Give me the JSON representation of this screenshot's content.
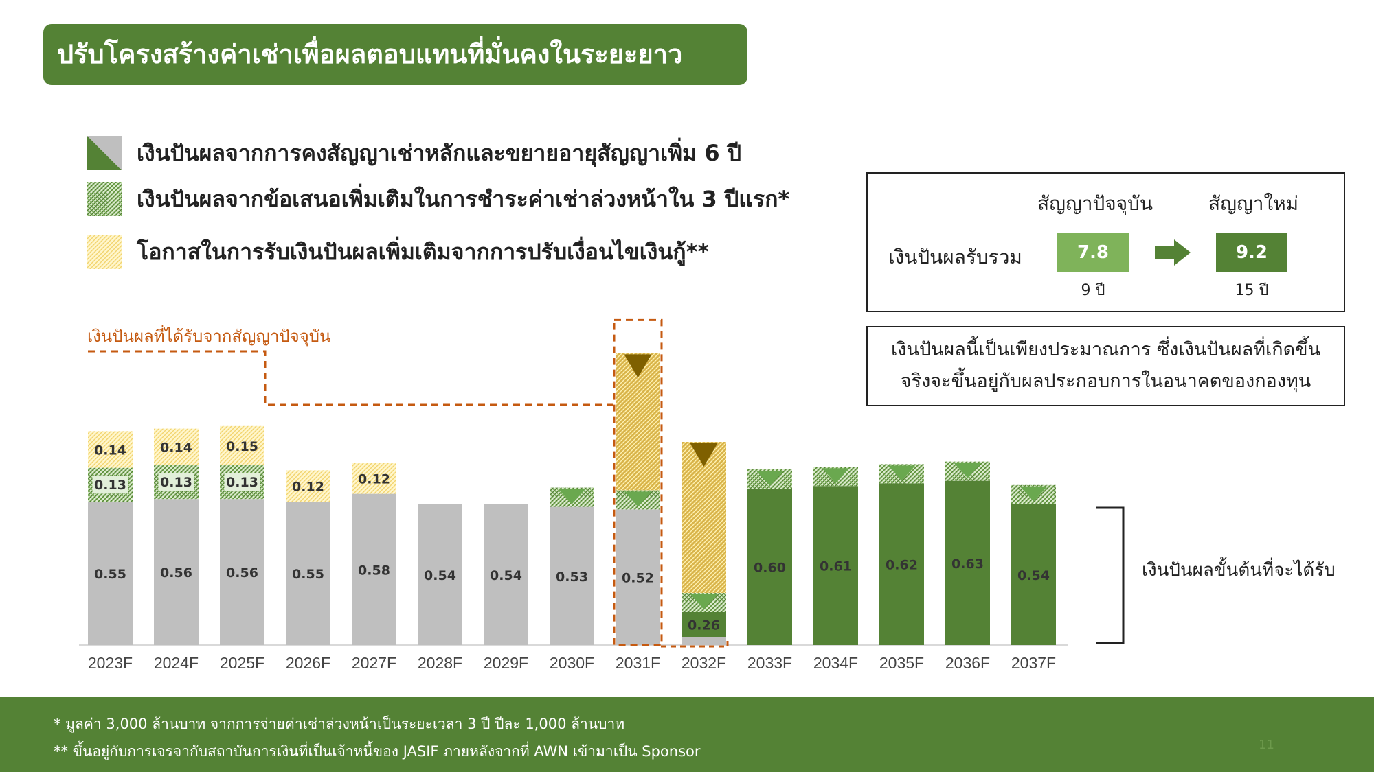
{
  "title": "ปรับโครงสร้างค่าเช่าเพื่อผลตอบแทนที่มั่นคงในระยะยาว",
  "legend": [
    {
      "label": "เงินปันผลจากการคงสัญญาเช่าหลักและขยายอายุสัญญาเพิ่ม 6 ปี",
      "icon": "diagonal-split-swatch-icon"
    },
    {
      "label": "เงินปันผลจากข้อเสนอเพิ่มเติมในการชำระค่าเช่าล่วงหน้าใน 3 ปีแรก*",
      "icon": "green-hatched-swatch-icon"
    },
    {
      "label": "โอกาสในการรับเงินปันผลเพิ่มเติมจากการปรับเงื่อนไขเงินกู้**",
      "icon": "yellow-hatched-swatch-icon"
    }
  ],
  "summary": {
    "col_current": "สัญญาปัจจุบัน",
    "col_new": "สัญญาใหม่",
    "row_label": "เงินปันผลรับรวม",
    "current_value": "7.8",
    "current_years": "9 ปี",
    "new_value": "9.2",
    "new_years": "15 ปี"
  },
  "note": {
    "line1": "เงินปันผลนี้เป็นเพียงประมาณการ ซึ่งเงินปันผลที่เกิดขึ้น",
    "line2": "จริงจะขึ้นอยู่กับผลประกอบการในอนาคตของกองทุน"
  },
  "current_contract_label": "เงินปันผลที่ได้รับจากสัญญาปัจจุบัน",
  "base_bracket_label": "เงินปันผลขั้นต้นที่จะได้รับ",
  "colors": {
    "green_dark": "#548235",
    "green_light": "#7FB35A",
    "grey": "#BFBFBF",
    "yellow_hatch": "#FFF2B3",
    "gold": "#B8860B",
    "orange_dash": "#C55A11"
  },
  "chart_data": {
    "type": "bar",
    "stacked": true,
    "categories": [
      "2023F",
      "2024F",
      "2025F",
      "2026F",
      "2027F",
      "2028F",
      "2029F",
      "2030F",
      "2031F",
      "2032F",
      "2033F",
      "2034F",
      "2035F",
      "2036F",
      "2037F"
    ],
    "series": [
      {
        "name": "",
        "values": [
          0.55,
          0.56,
          0.56,
          0.55,
          0.58,
          0.54,
          0.54,
          0.53,
          0.52,
          0.26,
          0.6,
          0.61,
          0.62,
          0.63,
          0.54
        ],
        "labels": [
          "0.55",
          "0.56",
          "0.56",
          "0.55",
          "0.58",
          "0.54",
          "0.54",
          "0.53",
          "0.52",
          "0.26",
          "0.60",
          "0.61",
          "0.62",
          "0.63",
          "0.54"
        ]
      },
      {
        "name": "",
        "values": [
          0.13,
          0.13,
          0.13,
          0,
          0,
          0,
          0,
          0,
          0,
          0,
          0,
          0,
          0,
          0,
          0
        ],
        "labels": [
          "0.13",
          "0.13",
          "0.13",
          "",
          "",
          "",
          "",
          "",
          "",
          "",
          "",
          "",
          "",
          "",
          ""
        ]
      },
      {
        "name": "",
        "values": [
          0.14,
          0.14,
          0.15,
          0.12,
          0.12,
          0,
          0,
          0,
          0,
          0,
          0,
          0,
          0,
          0,
          0
        ],
        "labels": [
          "0.14",
          "0.14",
          "0.15",
          "0.12",
          "0.12",
          "",
          "",
          "",
          "",
          "",
          "",
          "",
          "",
          "",
          ""
        ]
      }
    ],
    "ylim": [
      0,
      1.1
    ],
    "grid": false,
    "xlabel": "",
    "ylabel": ""
  },
  "footnotes": {
    "note1": "*  มูลค่า 3,000 ล้านบาท จากการจ่ายค่าเช่าล่วงหน้าเป็นระยะเวลา 3 ปี ปีละ 1,000 ล้านบาท",
    "note2": "** ขึ้นอยู่กับการเจรจากับสถาบันการเงินที่เป็นเจ้าหนี้ของ JASIF ภายหลังจากที่ AWN เข้ามาเป็น Sponsor",
    "page": "11"
  }
}
